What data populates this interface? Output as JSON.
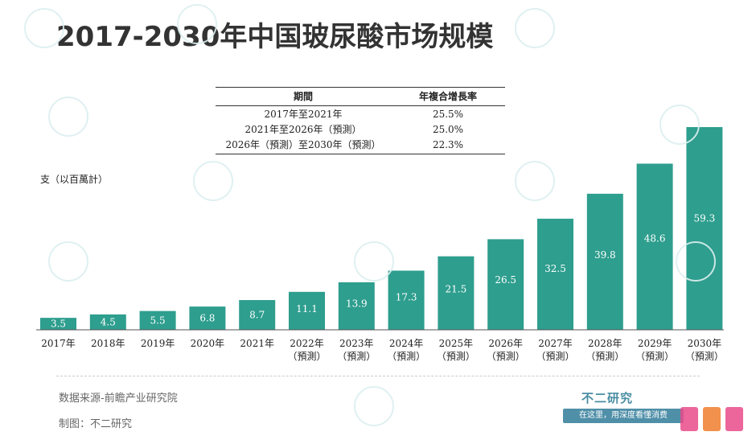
{
  "title": "2017-2030年中国玻尿酸市场规模",
  "cagr_table": {
    "headers": [
      "期間",
      "年複合增長率"
    ],
    "rows": [
      {
        "period": "2017年至2021年",
        "rate": "25.5%"
      },
      {
        "period": "2021年至2026年（預測）",
        "rate": "25.0%"
      },
      {
        "period": "2026年（預測）至2030年（預測）",
        "rate": "22.3%"
      }
    ]
  },
  "chart_data": {
    "type": "bar",
    "ylabel": "支（以百萬計）",
    "categories": [
      "2017年",
      "2018年",
      "2019年",
      "2020年",
      "2021年",
      "2022年",
      "2023年",
      "2024年",
      "2025年",
      "2026年",
      "2027年",
      "2028年",
      "2029年",
      "2030年"
    ],
    "sublabels": [
      "",
      "",
      "",
      "",
      "",
      "（預測）",
      "（預測）",
      "（預測）",
      "（預測）",
      "（預測）",
      "（預測）",
      "（預測）",
      "（預測）",
      "（預測）"
    ],
    "values": [
      3.5,
      4.5,
      5.5,
      6.8,
      8.7,
      11.1,
      13.9,
      17.3,
      21.5,
      26.5,
      32.5,
      39.8,
      48.6,
      59.3
    ],
    "value_labels": [
      "3.5",
      "4.5",
      "5.5",
      "6.8",
      "8.7",
      "11.1",
      "13.9",
      "17.3",
      "21.5",
      "26.5",
      "32.5",
      "39.8",
      "48.6",
      "59.3"
    ],
    "bar_color": "#2e9e8e",
    "axis_color": "#555555",
    "label_color_inside": "#ffffff",
    "ylim": [
      0,
      59.3
    ],
    "grid": false
  },
  "footer": {
    "source": "数据来源-前瞻产业研究院",
    "maker": "制图：不二研究"
  },
  "branding": {
    "brand_name": "不二研究",
    "slogan": "在这里，用深度看懂消费"
  }
}
